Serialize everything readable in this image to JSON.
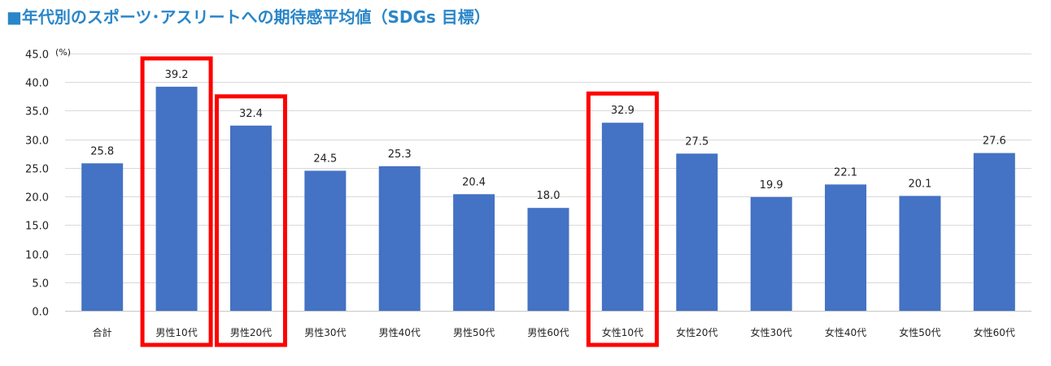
{
  "title": "■年代別のスポーツ･アスリートへの期待感平均値（SDGs 目標）",
  "chart_data": {
    "type": "bar",
    "title": "■年代別のスポーツ･アスリートへの期待感平均値（SDGs 目標）",
    "unit_label": "(%)",
    "categories": [
      "合計",
      "男性10代",
      "男性20代",
      "男性30代",
      "男性40代",
      "男性50代",
      "男性60代",
      "女性10代",
      "女性20代",
      "女性30代",
      "女性40代",
      "女性50代",
      "女性60代"
    ],
    "values": [
      25.8,
      39.2,
      32.4,
      24.5,
      25.3,
      20.4,
      18.0,
      32.9,
      27.5,
      19.9,
      22.1,
      20.1,
      27.6
    ],
    "value_labels": [
      "25.8",
      "39.2",
      "32.4",
      "24.5",
      "25.3",
      "20.4",
      "18.0",
      "32.9",
      "27.5",
      "19.9",
      "22.1",
      "20.1",
      "27.6"
    ],
    "yticks": [
      "0.0",
      "5.0",
      "10.0",
      "15.0",
      "20.0",
      "25.0",
      "30.0",
      "35.0",
      "40.0",
      "45.0"
    ],
    "ylim": [
      0,
      45
    ],
    "grid": true,
    "highlighted_categories": [
      "男性10代",
      "男性20代",
      "女性10代"
    ],
    "bar_color": "#4472c4",
    "highlight_color": "#ff0000",
    "title_color": "#2a86c8"
  }
}
